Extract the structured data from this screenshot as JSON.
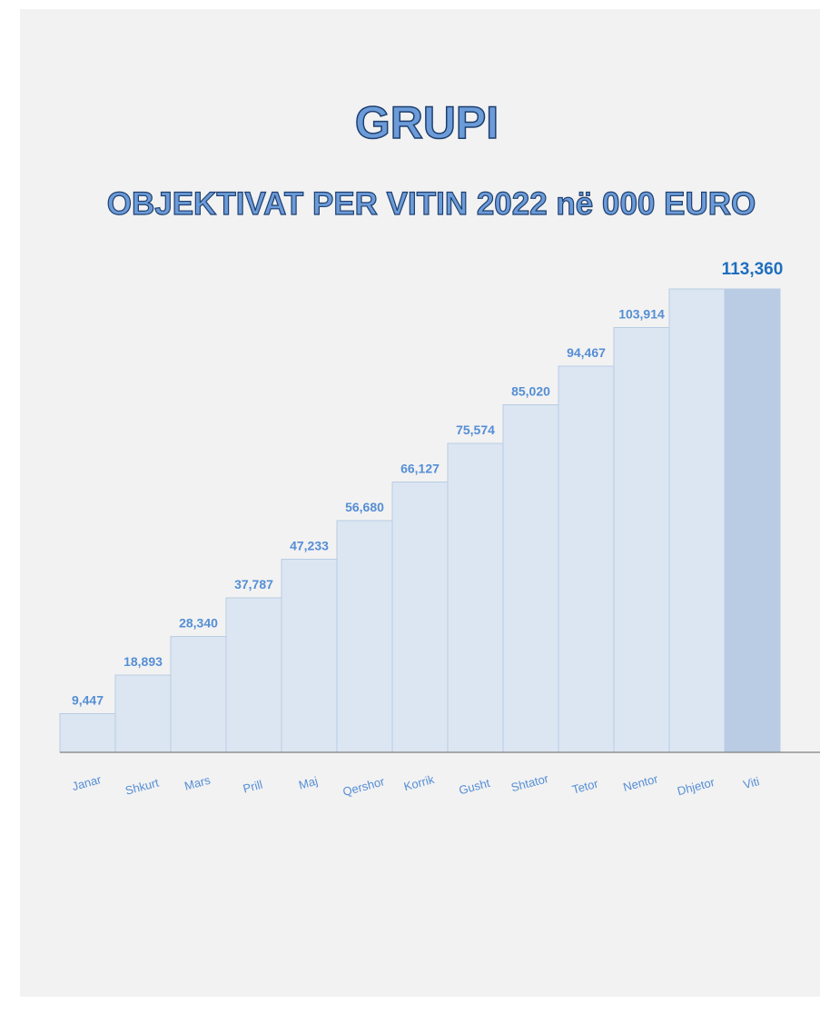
{
  "chart_data": {
    "type": "bar",
    "title": "GRUPI",
    "subtitle": "OBJEKTIVAT PER VITIN 2022 në 000 EURO",
    "categories": [
      "Janar",
      "Shkurt",
      "Mars",
      "Prill",
      "Maj",
      "Qershor",
      "Korrik",
      "Gusht",
      "Shtator",
      "Tetor",
      "Nentor",
      "Dhjetor",
      "Viti"
    ],
    "values": [
      9447,
      18893,
      28340,
      37787,
      47233,
      56680,
      66127,
      75574,
      85020,
      94467,
      103914,
      113360,
      113360
    ],
    "value_labels": [
      "9,447",
      "18,893",
      "28,340",
      "37,787",
      "47,233",
      "56,680",
      "66,127",
      "75,574",
      "85,020",
      "94,467",
      "103,914",
      null,
      "113,360"
    ],
    "colors": [
      "#dce6f2",
      "#dce6f2",
      "#dce6f2",
      "#dce6f2",
      "#dce6f2",
      "#dce6f2",
      "#dce6f2",
      "#dce6f2",
      "#dce6f2",
      "#dce6f2",
      "#dce6f2",
      "#dce6f2",
      "#b9cce4"
    ]
  }
}
